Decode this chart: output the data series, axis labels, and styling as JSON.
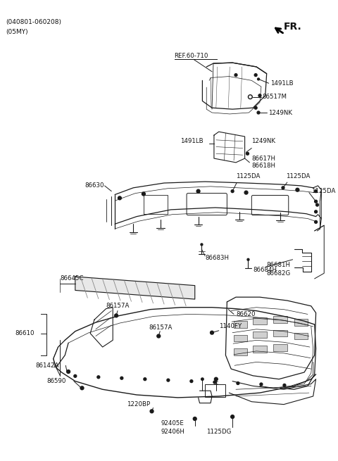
{
  "bg_color": "#ffffff",
  "line_color": "#1a1a1a",
  "text_color": "#111111",
  "header_line1": "(040801-060208)",
  "header_line2": "(05MY)",
  "fr_label": "FR.",
  "figsize": [
    4.8,
    6.55
  ],
  "dpi": 100
}
